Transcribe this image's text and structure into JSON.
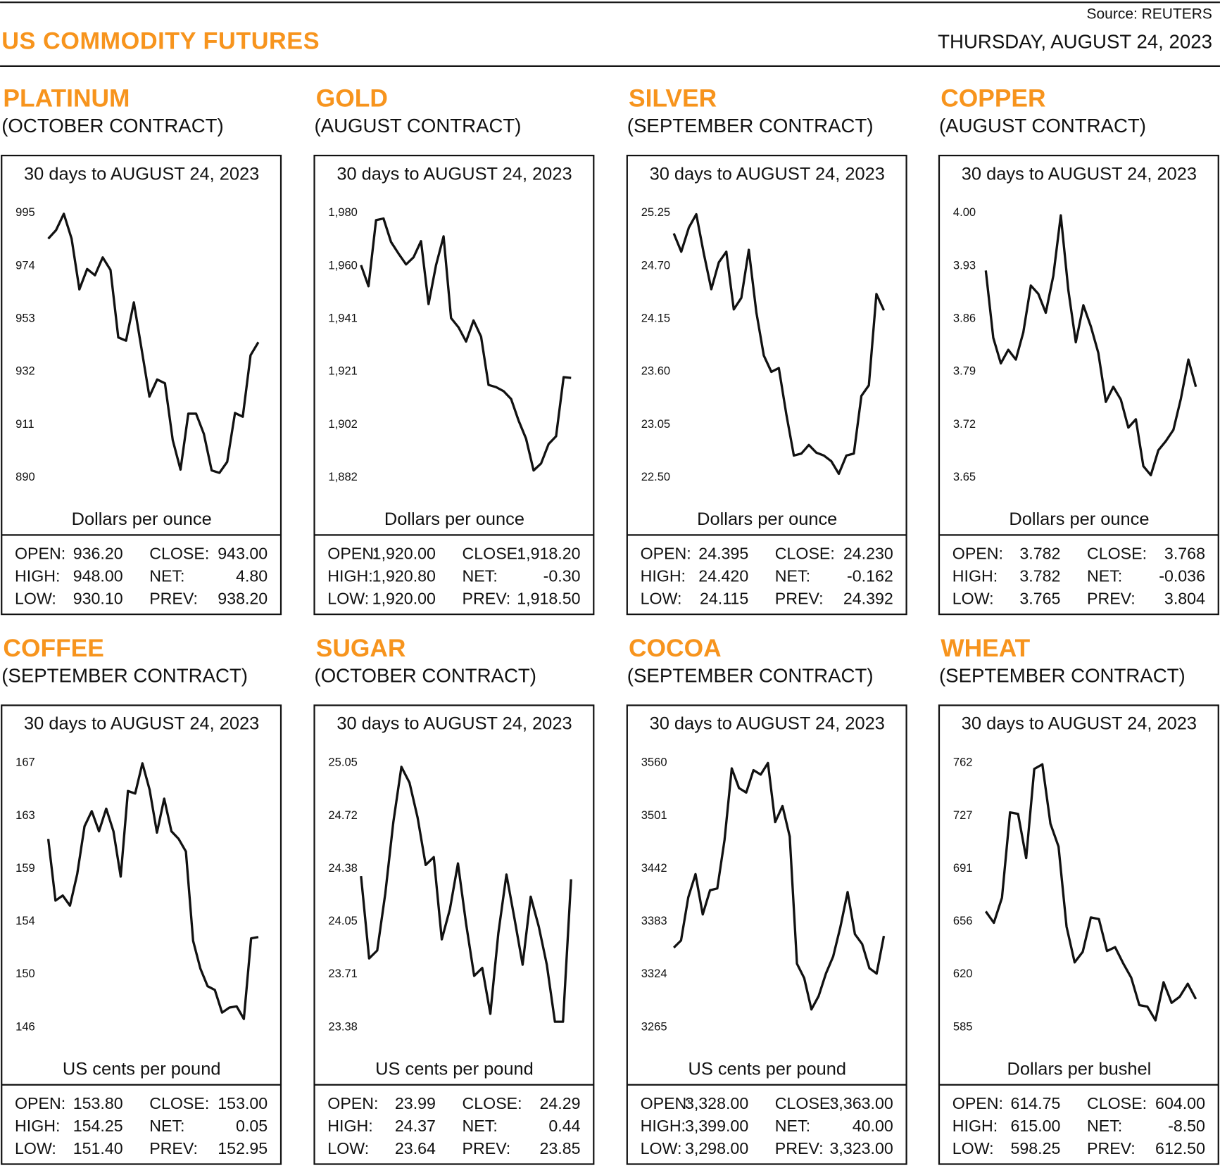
{
  "header": {
    "title": "US COMMODITY FUTURES",
    "source": "Source: REUTERS",
    "date": "THURSDAY, AUGUST 24, 2023",
    "accent_color": "#F7941D"
  },
  "chart_data": [
    {
      "type": "line",
      "name": "PLATINUM",
      "contract": "(OCTOBER CONTRACT)",
      "title": "30 days to AUGUST 24, 2023",
      "ylabel": "Dollars per ounce",
      "yticks": [
        "995",
        "974",
        "953",
        "932",
        "911",
        "890"
      ],
      "ylim": [
        890,
        995
      ],
      "values": [
        984.5,
        987.9,
        994.4,
        984.5,
        964.4,
        972.5,
        970.0,
        977.1,
        972.1,
        945.3,
        944.0,
        959.2,
        940.6,
        921.8,
        928.6,
        927.1,
        904.5,
        892.8,
        915.0,
        915.0,
        907.0,
        892.5,
        891.5,
        895.9,
        915.3,
        913.8,
        938.2,
        943.4
      ],
      "stats": {
        "open": "936.20",
        "high": "948.00",
        "low": "930.10",
        "close": "943.00",
        "net": "4.80",
        "prev": "938.20"
      }
    },
    {
      "type": "line",
      "name": "GOLD",
      "contract": "(AUGUST CONTRACT)",
      "title": "30 days to AUGUST 24, 2023",
      "ylabel": "Dollars per ounce",
      "yticks": [
        "1,980",
        "1,960",
        "1,941",
        "1,921",
        "1,902",
        "1,882"
      ],
      "ylim": [
        1882,
        1980
      ],
      "values": [
        1960.4,
        1952.6,
        1977.1,
        1977.7,
        1969.0,
        1964.7,
        1960.7,
        1963.3,
        1969.3,
        1946.0,
        1960.4,
        1971.1,
        1940.8,
        1937.3,
        1932.1,
        1939.9,
        1933.9,
        1916.0,
        1915.2,
        1913.7,
        1910.8,
        1902.8,
        1896.1,
        1884.3,
        1886.9,
        1894.1,
        1897.0,
        1918.9,
        1918.6
      ],
      "stats": {
        "open": "1,920.00",
        "high": "1,920.80",
        "low": "1,920.00",
        "close": "1,918.20",
        "net": "-0.30",
        "prev": "1,918.50"
      }
    },
    {
      "type": "line",
      "name": "SILVER",
      "contract": "(SEPTEMBER CONTRACT)",
      "title": "30 days to AUGUST 24, 2023",
      "ylabel": "Dollars per ounce",
      "yticks": [
        "25.25",
        "24.70",
        "24.15",
        "23.60",
        "23.05",
        "22.50"
      ],
      "ylim": [
        22.5,
        25.25
      ],
      "values": [
        25.03,
        24.84,
        25.09,
        25.23,
        24.82,
        24.45,
        24.73,
        24.84,
        24.24,
        24.36,
        24.86,
        24.21,
        23.76,
        23.59,
        23.63,
        23.15,
        22.72,
        22.74,
        22.83,
        22.75,
        22.72,
        22.66,
        22.53,
        22.72,
        22.74,
        23.34,
        23.45,
        24.4,
        24.23
      ],
      "stats": {
        "open": "24.395",
        "high": "24.420",
        "low": "24.115",
        "close": "24.230",
        "net": "-0.162",
        "prev": "24.392"
      }
    },
    {
      "type": "line",
      "name": "COPPER",
      "contract": "(AUGUST CONTRACT)",
      "title": "30 days to AUGUST 24, 2023",
      "ylabel": "Dollars per ounce",
      "yticks": [
        "4.00",
        "3.93",
        "3.86",
        "3.79",
        "3.72",
        "3.65"
      ],
      "ylim": [
        3.65,
        4.0
      ],
      "values": [
        3.923,
        3.834,
        3.8,
        3.818,
        3.805,
        3.841,
        3.903,
        3.892,
        3.867,
        3.916,
        3.996,
        3.897,
        3.828,
        3.877,
        3.849,
        3.814,
        3.749,
        3.769,
        3.752,
        3.715,
        3.726,
        3.664,
        3.652,
        3.685,
        3.697,
        3.712,
        3.753,
        3.805,
        3.769
      ],
      "stats": {
        "open": "3.782",
        "high": "3.782",
        "low": "3.765",
        "close": "3.768",
        "net": "-0.036",
        "prev": "3.804"
      }
    },
    {
      "type": "line",
      "name": "COFFEE",
      "contract": "(SEPTEMBER CONTRACT)",
      "title": "30 days to AUGUST 24, 2023",
      "ylabel": "US cents per pound",
      "yticks": [
        "167",
        "163",
        "159",
        "154",
        "150",
        "146"
      ],
      "ylim": [
        146,
        167
      ],
      "values": [
        160.9,
        156.0,
        156.4,
        155.6,
        158.1,
        161.9,
        163.1,
        161.5,
        163.3,
        161.5,
        157.9,
        164.7,
        164.5,
        166.9,
        164.8,
        161.4,
        164.1,
        161.5,
        160.9,
        159.9,
        152.8,
        150.6,
        149.2,
        148.9,
        147.1,
        147.5,
        147.6,
        146.6,
        153.0,
        153.1
      ],
      "stats": {
        "open": "153.80",
        "high": "154.25",
        "low": "151.40",
        "close": "153.00",
        "net": "0.05",
        "prev": "152.95"
      }
    },
    {
      "type": "line",
      "name": "SUGAR",
      "contract": "(OCTOBER CONTRACT)",
      "title": "30 days to AUGUST 24, 2023",
      "ylabel": "US cents per pound",
      "yticks": [
        "25.05",
        "24.72",
        "24.38",
        "24.05",
        "23.71",
        "23.38"
      ],
      "ylim": [
        23.38,
        25.05
      ],
      "values": [
        24.33,
        23.81,
        23.86,
        24.22,
        24.67,
        25.02,
        24.92,
        24.7,
        24.4,
        24.45,
        23.93,
        24.12,
        24.41,
        24.03,
        23.7,
        23.75,
        23.46,
        23.97,
        24.34,
        24.06,
        23.77,
        24.2,
        24.01,
        23.77,
        23.41,
        23.41,
        24.31
      ],
      "stats": {
        "open": "23.99",
        "high": "24.37",
        "low": "23.64",
        "close": "24.29",
        "net": "0.44",
        "prev": "23.85"
      }
    },
    {
      "type": "line",
      "name": "COCOA",
      "contract": "(SEPTEMBER CONTRACT)",
      "title": "30 days to AUGUST 24, 2023",
      "ylabel": "US cents per pound",
      "yticks": [
        "3560",
        "3501",
        "3442",
        "3383",
        "3324",
        "3265"
      ],
      "ylim": [
        3265,
        3560
      ],
      "values": [
        3353,
        3361,
        3409,
        3435,
        3390,
        3417,
        3419,
        3473,
        3553,
        3531,
        3526,
        3551,
        3546,
        3559,
        3493,
        3511,
        3477,
        3335,
        3319,
        3284,
        3299,
        3324,
        3343,
        3376,
        3415,
        3368,
        3357,
        3330,
        3324,
        3366
      ],
      "stats": {
        "open": "3,328.00",
        "high": "3,399.00",
        "low": "3,298.00",
        "close": "3,363.00",
        "net": "40.00",
        "prev": "3,323.00"
      }
    },
    {
      "type": "line",
      "name": "WHEAT",
      "contract": "(SEPTEMBER CONTRACT)",
      "title": "30 days to AUGUST 24, 2023",
      "ylabel": "Dollars per bushel",
      "yticks": [
        "762",
        "727",
        "691",
        "656",
        "620",
        "585"
      ],
      "ylim": [
        585,
        762
      ],
      "values": [
        662.0,
        654.4,
        671.2,
        728.3,
        727.3,
        697.7,
        757.4,
        760.5,
        720.7,
        705.4,
        651.8,
        627.9,
        635.0,
        658.0,
        656.9,
        635.5,
        638.1,
        627.4,
        617.7,
        599.3,
        598.3,
        589.1,
        614.6,
        600.8,
        604.9,
        613.6,
        603.4
      ],
      "stats": {
        "open": "614.75",
        "high": "615.00",
        "low": "598.25",
        "close": "604.00",
        "net": "-8.50",
        "prev": "612.50"
      }
    }
  ],
  "labels": {
    "open": "OPEN:",
    "high": "HIGH:",
    "low": "LOW:",
    "close": "CLOSE:",
    "net": "NET:",
    "prev": "PREV:"
  }
}
